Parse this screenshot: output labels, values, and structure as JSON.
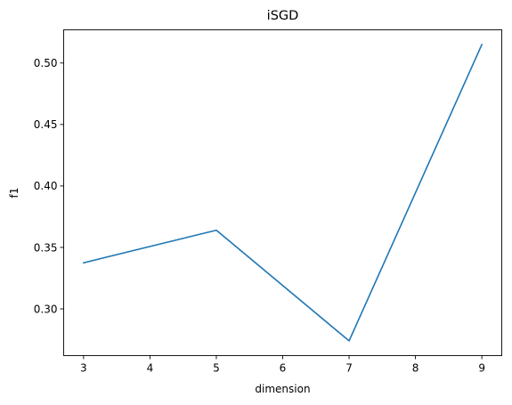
{
  "chart_data": {
    "type": "line",
    "title": "iSGD",
    "xlabel": "dimension",
    "ylabel": "f1",
    "x": [
      3,
      5,
      7,
      9
    ],
    "series": [
      {
        "color": "#1f77b4",
        "values": [
          0.3375,
          0.364,
          0.274,
          0.515
        ]
      }
    ],
    "xlim": [
      2.7,
      9.3
    ],
    "ylim": [
      0.262,
      0.527
    ],
    "xticks": [
      3,
      4,
      5,
      6,
      7,
      8,
      9
    ],
    "yticks": [
      0.3,
      0.35,
      0.4,
      0.45,
      0.5
    ],
    "xtick_labels": [
      "3",
      "4",
      "5",
      "6",
      "7",
      "8",
      "9"
    ],
    "ytick_labels": [
      "0.30",
      "0.35",
      "0.40",
      "0.45",
      "0.50"
    ],
    "grid": false,
    "legend": "none"
  }
}
